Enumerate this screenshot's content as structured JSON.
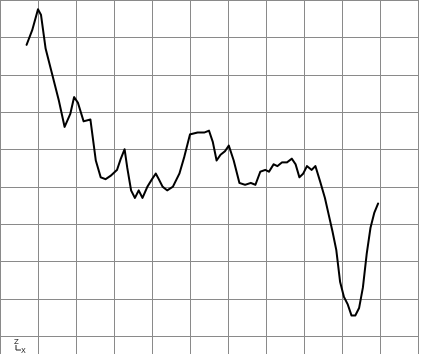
{
  "chart_data": {
    "type": "line",
    "title": "",
    "xlabel": "",
    "ylabel": "",
    "grid": true,
    "legend": "none",
    "xlim": [
      0,
      11
    ],
    "ylim": [
      0,
      9
    ],
    "series": [
      {
        "values": [
          [
            0.7,
            7.8
          ],
          [
            0.85,
            8.2
          ],
          [
            1.0,
            8.75
          ],
          [
            1.08,
            8.6
          ],
          [
            1.2,
            7.7
          ],
          [
            1.35,
            7.1
          ],
          [
            1.55,
            6.3
          ],
          [
            1.7,
            5.6
          ],
          [
            1.85,
            5.95
          ],
          [
            1.95,
            6.4
          ],
          [
            2.05,
            6.25
          ],
          [
            2.2,
            5.75
          ],
          [
            2.38,
            5.8
          ],
          [
            2.52,
            4.7
          ],
          [
            2.65,
            4.25
          ],
          [
            2.78,
            4.2
          ],
          [
            2.92,
            4.3
          ],
          [
            3.08,
            4.45
          ],
          [
            3.18,
            4.75
          ],
          [
            3.28,
            5.0
          ],
          [
            3.35,
            4.5
          ],
          [
            3.45,
            3.9
          ],
          [
            3.55,
            3.7
          ],
          [
            3.65,
            3.9
          ],
          [
            3.75,
            3.7
          ],
          [
            3.88,
            4.0
          ],
          [
            4.0,
            4.2
          ],
          [
            4.1,
            4.35
          ],
          [
            4.18,
            4.2
          ],
          [
            4.28,
            4.0
          ],
          [
            4.4,
            3.9
          ],
          [
            4.55,
            4.0
          ],
          [
            4.72,
            4.35
          ],
          [
            4.85,
            4.8
          ],
          [
            5.0,
            5.4
          ],
          [
            5.2,
            5.45
          ],
          [
            5.38,
            5.45
          ],
          [
            5.5,
            5.5
          ],
          [
            5.6,
            5.2
          ],
          [
            5.7,
            4.7
          ],
          [
            5.8,
            4.85
          ],
          [
            5.92,
            4.95
          ],
          [
            6.02,
            5.1
          ],
          [
            6.15,
            4.7
          ],
          [
            6.3,
            4.1
          ],
          [
            6.45,
            4.05
          ],
          [
            6.6,
            4.1
          ],
          [
            6.72,
            4.05
          ],
          [
            6.85,
            4.4
          ],
          [
            6.98,
            4.45
          ],
          [
            7.08,
            4.4
          ],
          [
            7.2,
            4.6
          ],
          [
            7.3,
            4.55
          ],
          [
            7.42,
            4.65
          ],
          [
            7.55,
            4.65
          ],
          [
            7.68,
            4.75
          ],
          [
            7.78,
            4.6
          ],
          [
            7.88,
            4.25
          ],
          [
            7.98,
            4.35
          ],
          [
            8.08,
            4.55
          ],
          [
            8.2,
            4.45
          ],
          [
            8.3,
            4.55
          ],
          [
            8.42,
            4.15
          ],
          [
            8.55,
            3.7
          ],
          [
            8.65,
            3.25
          ],
          [
            8.75,
            2.8
          ],
          [
            8.85,
            2.3
          ],
          [
            8.95,
            1.45
          ],
          [
            9.05,
            1.05
          ],
          [
            9.15,
            0.85
          ],
          [
            9.25,
            0.55
          ],
          [
            9.35,
            0.55
          ],
          [
            9.45,
            0.75
          ],
          [
            9.55,
            1.3
          ],
          [
            9.65,
            2.2
          ],
          [
            9.75,
            2.9
          ],
          [
            9.85,
            3.3
          ],
          [
            9.95,
            3.55
          ]
        ]
      }
    ]
  },
  "corner_axes": {
    "upper_letter": "Z",
    "right_letter": "X"
  }
}
